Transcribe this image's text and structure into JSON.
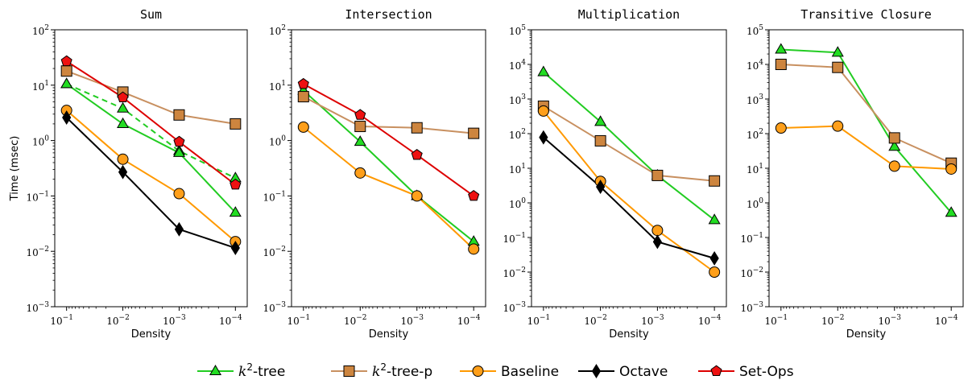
{
  "legend": [
    {
      "key": "k2tree",
      "prefix": "k",
      "sup": "2",
      "suffix": "-tree",
      "color": "#22dd22",
      "line": "#22cc22",
      "marker": "triangle"
    },
    {
      "key": "k2treep",
      "prefix": "k",
      "sup": "2",
      "suffix": "-tree-p",
      "color": "#cd853f",
      "line": "#c89060",
      "marker": "square"
    },
    {
      "key": "baseline",
      "prefix": "",
      "sup": "",
      "suffix": "Baseline",
      "color": "#ff9f1a",
      "line": "#ff9900",
      "marker": "circle"
    },
    {
      "key": "octave",
      "prefix": "",
      "sup": "",
      "suffix": "Octave",
      "color": "#000000",
      "line": "#000000",
      "marker": "diamond"
    },
    {
      "key": "setops",
      "prefix": "",
      "sup": "",
      "suffix": "Set-Ops",
      "color": "#ee1111",
      "line": "#dd0000",
      "marker": "pentagon"
    }
  ],
  "chart_data": [
    {
      "type": "line",
      "title": "Sum",
      "xlabel": "Density",
      "ylabel": "Time (msec)",
      "xscale": "log",
      "yscale": "log",
      "x": [
        0.1,
        0.01,
        0.001,
        0.0001
      ],
      "xticks": [
        {
          "base": "10",
          "exp": "−1"
        },
        {
          "base": "10",
          "exp": "−2"
        },
        {
          "base": "10",
          "exp": "−3"
        },
        {
          "base": "10",
          "exp": "−4"
        }
      ],
      "ylim": [
        0.001,
        100
      ],
      "yticks": [
        {
          "base": "10",
          "exp": "−3"
        },
        {
          "base": "10",
          "exp": "−2"
        },
        {
          "base": "10",
          "exp": "−1"
        },
        {
          "base": "10",
          "exp": "0"
        },
        {
          "base": "10",
          "exp": "1"
        },
        {
          "base": "10",
          "exp": "2"
        }
      ],
      "series": [
        {
          "key": "k2tree",
          "values": [
            10.5,
            3.8,
            0.65,
            0.21
          ],
          "dashed": true
        },
        {
          "key": "k2tree",
          "values": [
            10.5,
            2.0,
            0.6,
            0.05
          ]
        },
        {
          "key": "k2treep",
          "values": [
            18,
            7.5,
            2.9,
            2.0
          ]
        },
        {
          "key": "baseline",
          "values": [
            3.5,
            0.46,
            0.11,
            0.015
          ]
        },
        {
          "key": "octave",
          "values": [
            2.6,
            0.27,
            0.025,
            0.0115
          ]
        },
        {
          "key": "setops",
          "values": [
            27,
            6,
            0.95,
            0.16
          ]
        }
      ]
    },
    {
      "type": "line",
      "title": "Intersection",
      "xlabel": "Density",
      "ylabel": "",
      "xscale": "log",
      "yscale": "log",
      "x": [
        0.1,
        0.01,
        0.001,
        0.0001
      ],
      "xticks": [
        {
          "base": "10",
          "exp": "−1"
        },
        {
          "base": "10",
          "exp": "−2"
        },
        {
          "base": "10",
          "exp": "−3"
        },
        {
          "base": "10",
          "exp": "−4"
        }
      ],
      "ylim": [
        0.001,
        100
      ],
      "yticks": [
        {
          "base": "10",
          "exp": "−3"
        },
        {
          "base": "10",
          "exp": "−2"
        },
        {
          "base": "10",
          "exp": "−1"
        },
        {
          "base": "10",
          "exp": "0"
        },
        {
          "base": "10",
          "exp": "1"
        },
        {
          "base": "10",
          "exp": "2"
        }
      ],
      "series": [
        {
          "key": "k2tree",
          "values": [
            8.0,
            0.95,
            0.1,
            0.015
          ]
        },
        {
          "key": "k2treep",
          "values": [
            6.2,
            1.8,
            1.7,
            1.35
          ]
        },
        {
          "key": "baseline",
          "values": [
            1.75,
            0.26,
            0.1,
            0.011
          ]
        },
        {
          "key": "setops",
          "values": [
            10.5,
            2.9,
            0.55,
            0.1
          ]
        }
      ]
    },
    {
      "type": "line",
      "title": "Multiplication",
      "xlabel": "Density",
      "ylabel": "",
      "xscale": "log",
      "yscale": "log",
      "x": [
        0.1,
        0.01,
        0.001,
        0.0001
      ],
      "xticks": [
        {
          "base": "10",
          "exp": "−1"
        },
        {
          "base": "10",
          "exp": "−2"
        },
        {
          "base": "10",
          "exp": "−3"
        },
        {
          "base": "10",
          "exp": "−4"
        }
      ],
      "ylim": [
        0.001,
        100000
      ],
      "yticks": [
        {
          "base": "10",
          "exp": "−3"
        },
        {
          "base": "10",
          "exp": "−2"
        },
        {
          "base": "10",
          "exp": "−1"
        },
        {
          "base": "10",
          "exp": "0"
        },
        {
          "base": "10",
          "exp": "1"
        },
        {
          "base": "10",
          "exp": "2"
        },
        {
          "base": "10",
          "exp": "3"
        },
        {
          "base": "10",
          "exp": "4"
        },
        {
          "base": "10",
          "exp": "5"
        }
      ],
      "series": [
        {
          "key": "k2tree",
          "values": [
            6000,
            220,
            6.2,
            0.32
          ]
        },
        {
          "key": "k2treep",
          "values": [
            620,
            62,
            6.2,
            4.3
          ]
        },
        {
          "key": "baseline",
          "values": [
            450,
            4.2,
            0.16,
            0.01
          ]
        },
        {
          "key": "octave",
          "values": [
            78,
            2.9,
            0.075,
            0.025
          ]
        }
      ]
    },
    {
      "type": "line",
      "title": "Transitive Closure",
      "xlabel": "Density",
      "ylabel": "",
      "xscale": "log",
      "yscale": "log",
      "x": [
        0.1,
        0.01,
        0.001,
        0.0001
      ],
      "xticks": [
        {
          "base": "10",
          "exp": "−1"
        },
        {
          "base": "10",
          "exp": "−2"
        },
        {
          "base": "10",
          "exp": "−3"
        },
        {
          "base": "10",
          "exp": "−4"
        }
      ],
      "ylim": [
        0.001,
        100000
      ],
      "yticks": [
        {
          "base": "10",
          "exp": "−3"
        },
        {
          "base": "10",
          "exp": "−2"
        },
        {
          "base": "10",
          "exp": "−1"
        },
        {
          "base": "10",
          "exp": "0"
        },
        {
          "base": "10",
          "exp": "1"
        },
        {
          "base": "10",
          "exp": "2"
        },
        {
          "base": "10",
          "exp": "3"
        },
        {
          "base": "10",
          "exp": "4"
        },
        {
          "base": "10",
          "exp": "5"
        }
      ],
      "series": [
        {
          "key": "k2tree",
          "values": [
            27000,
            22000,
            42,
            0.52
          ]
        },
        {
          "key": "k2treep",
          "values": [
            10000,
            8200,
            75,
            14
          ]
        },
        {
          "key": "baseline",
          "values": [
            145,
            165,
            11.5,
            9.5
          ]
        }
      ]
    }
  ]
}
